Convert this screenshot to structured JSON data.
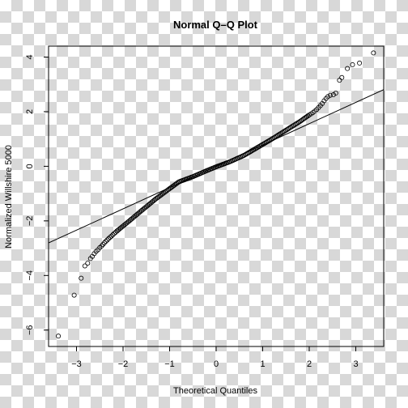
{
  "chart_data": {
    "type": "scatter",
    "title": "Normal Q–Q Plot",
    "xlabel": "Theoretical Quantiles",
    "ylabel": "Normalized Willshire 5000",
    "xlim": [
      -3.6,
      3.6
    ],
    "ylim": [
      -6.6,
      4.4
    ],
    "xticks": [
      -3,
      -2,
      -1,
      0,
      1,
      2,
      3
    ],
    "xtick_labels": [
      "−3",
      "−2",
      "−1",
      "0",
      "1",
      "2",
      "3"
    ],
    "yticks": [
      -6,
      -4,
      -2,
      0,
      2,
      4
    ],
    "ytick_labels": [
      "−6",
      "−4",
      "−2",
      "0",
      "2",
      "4"
    ],
    "grid": false,
    "reference_line": {
      "slope": 0.78,
      "intercept": 0.0
    },
    "series": [
      {
        "marker": "open-circle",
        "points": [
          [
            -3.39,
            -6.22
          ],
          [
            -3.05,
            -4.72
          ],
          [
            -2.9,
            -4.1
          ],
          [
            -2.82,
            -3.65
          ],
          [
            -2.76,
            -3.55
          ],
          [
            -2.7,
            -3.38
          ],
          [
            -2.66,
            -3.3
          ],
          [
            -2.62,
            -3.2
          ],
          [
            -2.58,
            -3.12
          ],
          [
            -2.54,
            -3.06
          ],
          [
            -2.5,
            -2.98
          ],
          [
            -2.46,
            -2.92
          ],
          [
            -2.43,
            -2.86
          ],
          [
            -2.4,
            -2.8
          ],
          [
            -2.37,
            -2.75
          ],
          [
            -2.34,
            -2.7
          ],
          [
            -2.31,
            -2.65
          ],
          [
            -2.28,
            -2.6
          ],
          [
            -2.25,
            -2.56
          ],
          [
            -2.22,
            -2.51
          ],
          [
            -2.19,
            -2.46
          ],
          [
            -2.16,
            -2.42
          ],
          [
            -2.13,
            -2.37
          ],
          [
            2.0,
            1.88
          ],
          [
            2.04,
            1.92
          ],
          [
            2.08,
            1.97
          ],
          [
            2.12,
            2.02
          ],
          [
            2.16,
            2.08
          ],
          [
            2.2,
            2.15
          ],
          [
            2.24,
            2.22
          ],
          [
            2.28,
            2.3
          ],
          [
            2.32,
            2.4
          ],
          [
            2.36,
            2.48
          ],
          [
            2.4,
            2.55
          ],
          [
            2.45,
            2.6
          ],
          [
            2.52,
            2.62
          ],
          [
            2.57,
            2.68
          ],
          [
            2.65,
            3.15
          ],
          [
            2.7,
            3.25
          ],
          [
            2.82,
            3.58
          ],
          [
            2.93,
            3.72
          ],
          [
            3.08,
            3.78
          ],
          [
            3.38,
            4.15
          ]
        ],
        "dense_band": [
          [
            -2.13,
            -2.37
          ],
          [
            -1.9,
            -2.05
          ],
          [
            -1.6,
            -1.62
          ],
          [
            -1.3,
            -1.2
          ],
          [
            -1.0,
            -0.82
          ],
          [
            -0.8,
            -0.57
          ],
          [
            -0.5,
            -0.38
          ],
          [
            -0.2,
            -0.16
          ],
          [
            0.0,
            -0.02
          ],
          [
            0.3,
            0.17
          ],
          [
            0.6,
            0.4
          ],
          [
            0.9,
            0.7
          ],
          [
            1.2,
            1.0
          ],
          [
            1.5,
            1.32
          ],
          [
            1.8,
            1.64
          ],
          [
            2.0,
            1.88
          ]
        ]
      }
    ]
  }
}
